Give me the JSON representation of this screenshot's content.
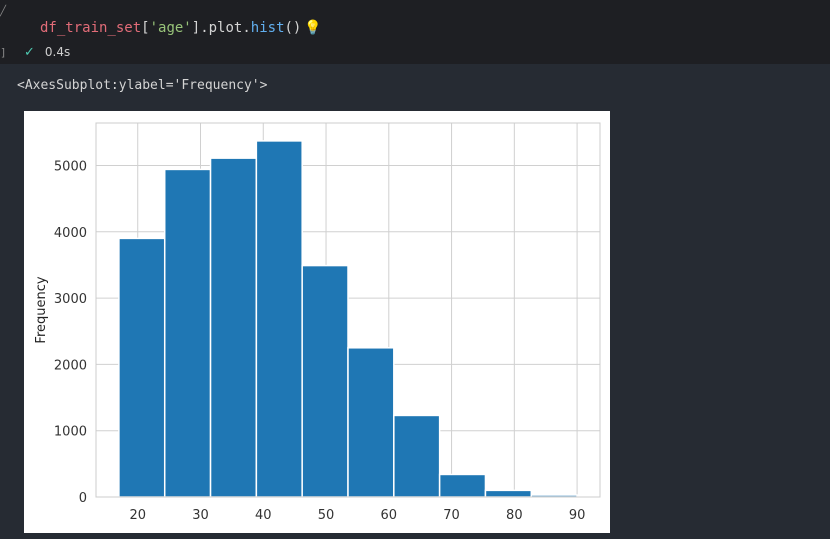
{
  "cell": {
    "code": {
      "var": "df_train_set",
      "open_bracket": "[",
      "key": "'age'",
      "close_bracket": "]",
      "dot1": ".",
      "attr": "plot",
      "dot2": ".",
      "fn": "hist",
      "parens": "()"
    },
    "status_time": "0.4s",
    "output_repr": "<AxesSubplot:ylabel='Frequency'>"
  },
  "icons": {
    "bulb": "lightbulb-icon",
    "check": "checkmark-icon",
    "chevron": "chevron-icon"
  },
  "chart_data": {
    "type": "bar",
    "title": "",
    "xlabel": "",
    "ylabel": "Frequency",
    "bins": [
      {
        "x0": 17.0,
        "x1": 24.3,
        "value": 3900
      },
      {
        "x0": 24.3,
        "x1": 31.6,
        "value": 4940
      },
      {
        "x0": 31.6,
        "x1": 38.9,
        "value": 5110
      },
      {
        "x0": 38.9,
        "x1": 46.2,
        "value": 5370
      },
      {
        "x0": 46.2,
        "x1": 53.5,
        "value": 3490
      },
      {
        "x0": 53.5,
        "x1": 60.8,
        "value": 2250
      },
      {
        "x0": 60.8,
        "x1": 68.1,
        "value": 1230
      },
      {
        "x0": 68.1,
        "x1": 75.4,
        "value": 340
      },
      {
        "x0": 75.4,
        "x1": 82.7,
        "value": 100
      },
      {
        "x0": 82.7,
        "x1": 90.0,
        "value": 30
      }
    ],
    "xlim": [
      13.35,
      93.65
    ],
    "ylim": [
      0,
      5640
    ],
    "xticks": [
      20,
      30,
      40,
      50,
      60,
      70,
      80,
      90
    ],
    "yticks": [
      0,
      1000,
      2000,
      3000,
      4000,
      5000
    ],
    "grid": true,
    "bar_color": "#1f77b4",
    "edge_color": "#ffffff",
    "grid_color": "#d0d0d0"
  }
}
